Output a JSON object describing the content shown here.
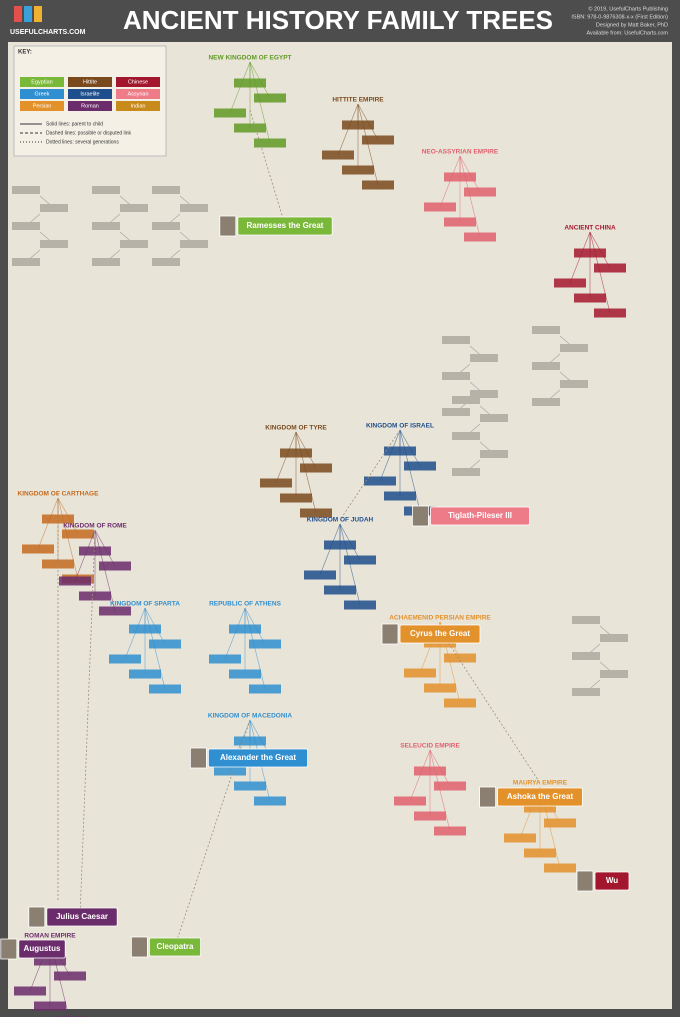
{
  "header": {
    "title": "ANCIENT HISTORY FAMILY TREES",
    "logo": "USEFULCHARTS.COM",
    "credits": [
      "© 2019, UsefulCharts Publishing",
      "ISBN: 978-0-9876308-x-x (First Edition)",
      "Designed by Matt Baker, PhD",
      "Available from: UsefulCharts.com"
    ]
  },
  "key": {
    "title": "KEY:",
    "entries": [
      {
        "label": "Egyptian",
        "color": "#7ab83a"
      },
      {
        "label": "Hittite",
        "color": "#7a4a1e"
      },
      {
        "label": "Chinese",
        "color": "#a3172e"
      },
      {
        "label": "Greek",
        "color": "#2f8fd0"
      },
      {
        "label": "Israelite",
        "color": "#1f4e8c"
      },
      {
        "label": "Assyrian",
        "color": "#ee7b88"
      },
      {
        "label": "Persian",
        "color": "#e3912b"
      },
      {
        "label": "Roman",
        "color": "#6b2c6b"
      },
      {
        "label": "Indian",
        "color": "#c98a1c"
      }
    ],
    "notes": [
      "Solid lines: parent to child",
      "Dashed lines: possible or disputed link",
      "Dotted lines: several generations"
    ]
  },
  "headings": [
    {
      "text": "NEW KINGDOM OF EGYPT",
      "color": "#5f9a24"
    },
    {
      "text": "HITTITE EMPIRE",
      "color": "#7a4a1e"
    },
    {
      "text": "NEO-ASSYRIAN EMPIRE",
      "color": "#e0606f"
    },
    {
      "text": "ANCIENT CHINA",
      "color": "#a3172e"
    },
    {
      "text": "KINGDOM OF TYRE",
      "color": "#7a4a1e"
    },
    {
      "text": "KINGDOM OF ISRAEL",
      "color": "#1f4e8c"
    },
    {
      "text": "KINGDOM OF CARTHAGE",
      "color": "#c46a1e"
    },
    {
      "text": "KINGDOM OF ROME",
      "color": "#6b2c6b"
    },
    {
      "text": "KINGDOM OF JUDAH",
      "color": "#1f4e8c"
    },
    {
      "text": "KINGDOM OF SPARTA",
      "color": "#2f8fd0"
    },
    {
      "text": "REPUBLIC OF ATHENS",
      "color": "#2f8fd0"
    },
    {
      "text": "ACHAEMENID PERSIAN EMPIRE",
      "color": "#e3912b"
    },
    {
      "text": "KINGDOM OF MACEDONIA",
      "color": "#2f8fd0"
    },
    {
      "text": "SELEUCID EMPIRE",
      "color": "#e0606f"
    },
    {
      "text": "MAURYA EMPIRE",
      "color": "#e3912b"
    },
    {
      "text": "ROMAN EMPIRE",
      "color": "#6b2c6b"
    }
  ],
  "nodes": [
    {
      "label": "Ramesses the Great",
      "color": "#7ab83a"
    },
    {
      "label": "Tiglath-Pileser III",
      "color": "#ee7b88"
    },
    {
      "label": "Cyrus the Great",
      "color": "#e3912b"
    },
    {
      "label": "Alexander the Great",
      "color": "#2f8fd0"
    },
    {
      "label": "Ashoka the Great",
      "color": "#e3912b"
    },
    {
      "label": "Julius Caesar",
      "color": "#6b2c6b"
    },
    {
      "label": "Augustus",
      "color": "#6b2c6b"
    },
    {
      "label": "Cleopatra",
      "color": "#7ab83a"
    },
    {
      "label": "Wu",
      "color": "#a3172e"
    }
  ]
}
